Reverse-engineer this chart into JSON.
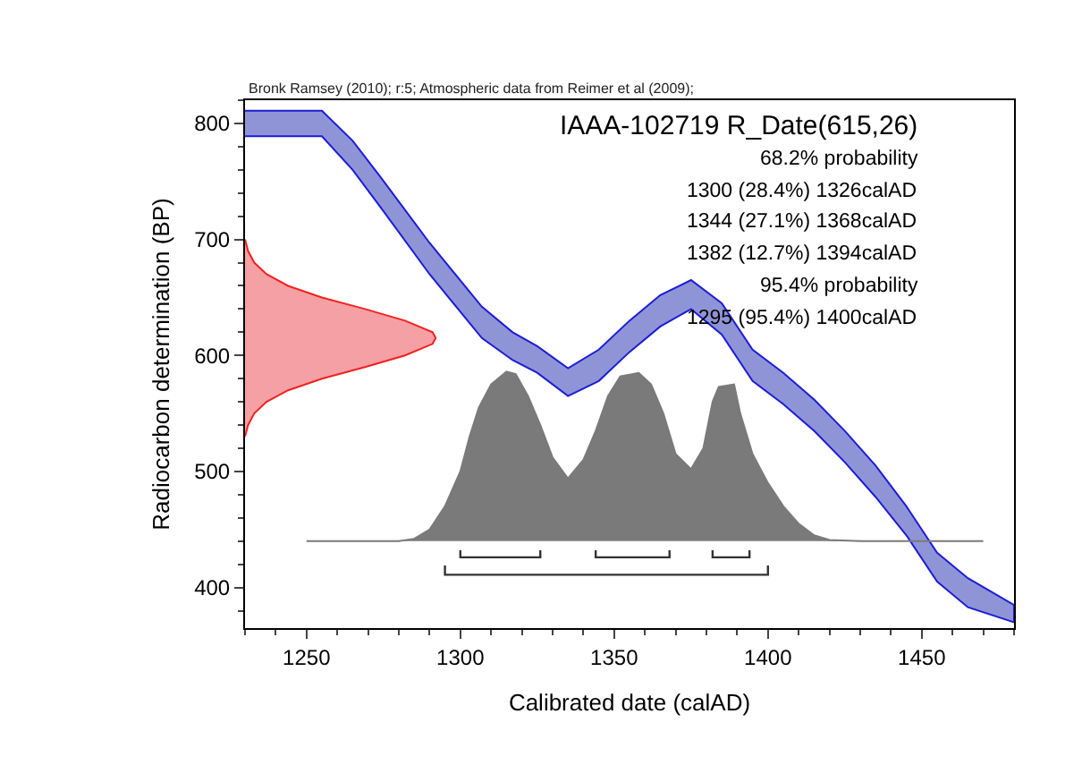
{
  "chart_data": {
    "type": "line",
    "title": "IAAA-102719 R_Date(615,26)",
    "xlabel": "Calibrated date (calAD)",
    "ylabel": "Radiocarbon determination (BP)",
    "annotations": [
      "Bronk Ramsey (2010); r:5; Atmospheric data from Reimer et al (2009);",
      "68.2% probability",
      "1300 (28.4%) 1326calAD",
      "1344 (27.1%) 1368calAD",
      "1382 (12.7%) 1394calAD",
      "95.4% probability",
      "1295 (95.4%) 1400calAD"
    ],
    "xlim": [
      1230,
      1480
    ],
    "xticks": [
      1250,
      1300,
      1350,
      1400,
      1450
    ],
    "ylim": [
      365,
      820
    ],
    "yticks": [
      400,
      500,
      600,
      700,
      800
    ],
    "marker": "none",
    "line_style": "solid",
    "series": [
      {
        "type": "area",
        "color": "#8f94d6",
        "x": [
          1230,
          1255,
          1265,
          1274,
          1290,
          1307,
          1317,
          1325,
          1335,
          1345,
          1355,
          1365,
          1375,
          1385,
          1395,
          1405,
          1415,
          1425,
          1435,
          1445,
          1455,
          1465,
          1480,
          1480,
          1465,
          1455,
          1445,
          1435,
          1425,
          1415,
          1405,
          1395,
          1385,
          1375,
          1365,
          1355,
          1345,
          1335,
          1325,
          1317,
          1307,
          1290,
          1274,
          1265,
          1255,
          1230
        ],
        "values": [
          811,
          811,
          785,
          754,
          697,
          642,
          620,
          608,
          589,
          605,
          630,
          652,
          665,
          645,
          605,
          585,
          562,
          535,
          505,
          470,
          430,
          408,
          385,
          370,
          383,
          405,
          445,
          478,
          508,
          535,
          558,
          578,
          618,
          640,
          625,
          603,
          578,
          565,
          585,
          596,
          615,
          670,
          728,
          760,
          789,
          789
        ]
      },
      {
        "type": "area",
        "color": "#f4a0a4",
        "x": [
          1230,
          1231,
          1233,
          1237,
          1244,
          1255,
          1269,
          1282,
          1291,
          1292,
          1291,
          1282,
          1269,
          1255,
          1244,
          1237,
          1233,
          1231,
          1230
        ],
        "values": [
          700,
          690,
          680,
          670,
          660,
          650,
          640,
          630,
          620,
          615,
          610,
          600,
          590,
          580,
          570,
          560,
          550,
          540,
          530
        ]
      },
      {
        "type": "area",
        "color": "#7a7a7a",
        "x": [
          1250,
          1280,
          1285,
          1290,
          1295,
          1300,
          1303,
          1306,
          1310,
          1315,
          1318,
          1322,
          1326,
          1330,
          1335,
          1340,
          1344,
          1348,
          1352,
          1358,
          1362,
          1366,
          1370,
          1375,
          1379,
          1382,
          1384,
          1389,
          1391,
          1395,
          1400,
          1405,
          1410,
          1415,
          1420,
          1430,
          1470
        ],
        "values": [
          440,
          440,
          442,
          450,
          470,
          500,
          530,
          555,
          575,
          586,
          584,
          565,
          540,
          512,
          494,
          510,
          535,
          565,
          582,
          585,
          575,
          550,
          515,
          502,
          520,
          560,
          573,
          575,
          550,
          515,
          490,
          470,
          455,
          445,
          441,
          440,
          440
        ]
      },
      {
        "color": "#333333",
        "x": [
          1300,
          1300,
          1326,
          1326
        ],
        "values": [
          432,
          426,
          426,
          432
        ]
      },
      {
        "color": "#333333",
        "x": [
          1344,
          1344,
          1368,
          1368
        ],
        "values": [
          432,
          426,
          426,
          432
        ]
      },
      {
        "color": "#333333",
        "x": [
          1382,
          1382,
          1394,
          1394
        ],
        "values": [
          432,
          426,
          426,
          432
        ]
      },
      {
        "color": "#333333",
        "x": [
          1295,
          1295,
          1400,
          1400
        ],
        "values": [
          419,
          411,
          411,
          419
        ]
      }
    ]
  }
}
